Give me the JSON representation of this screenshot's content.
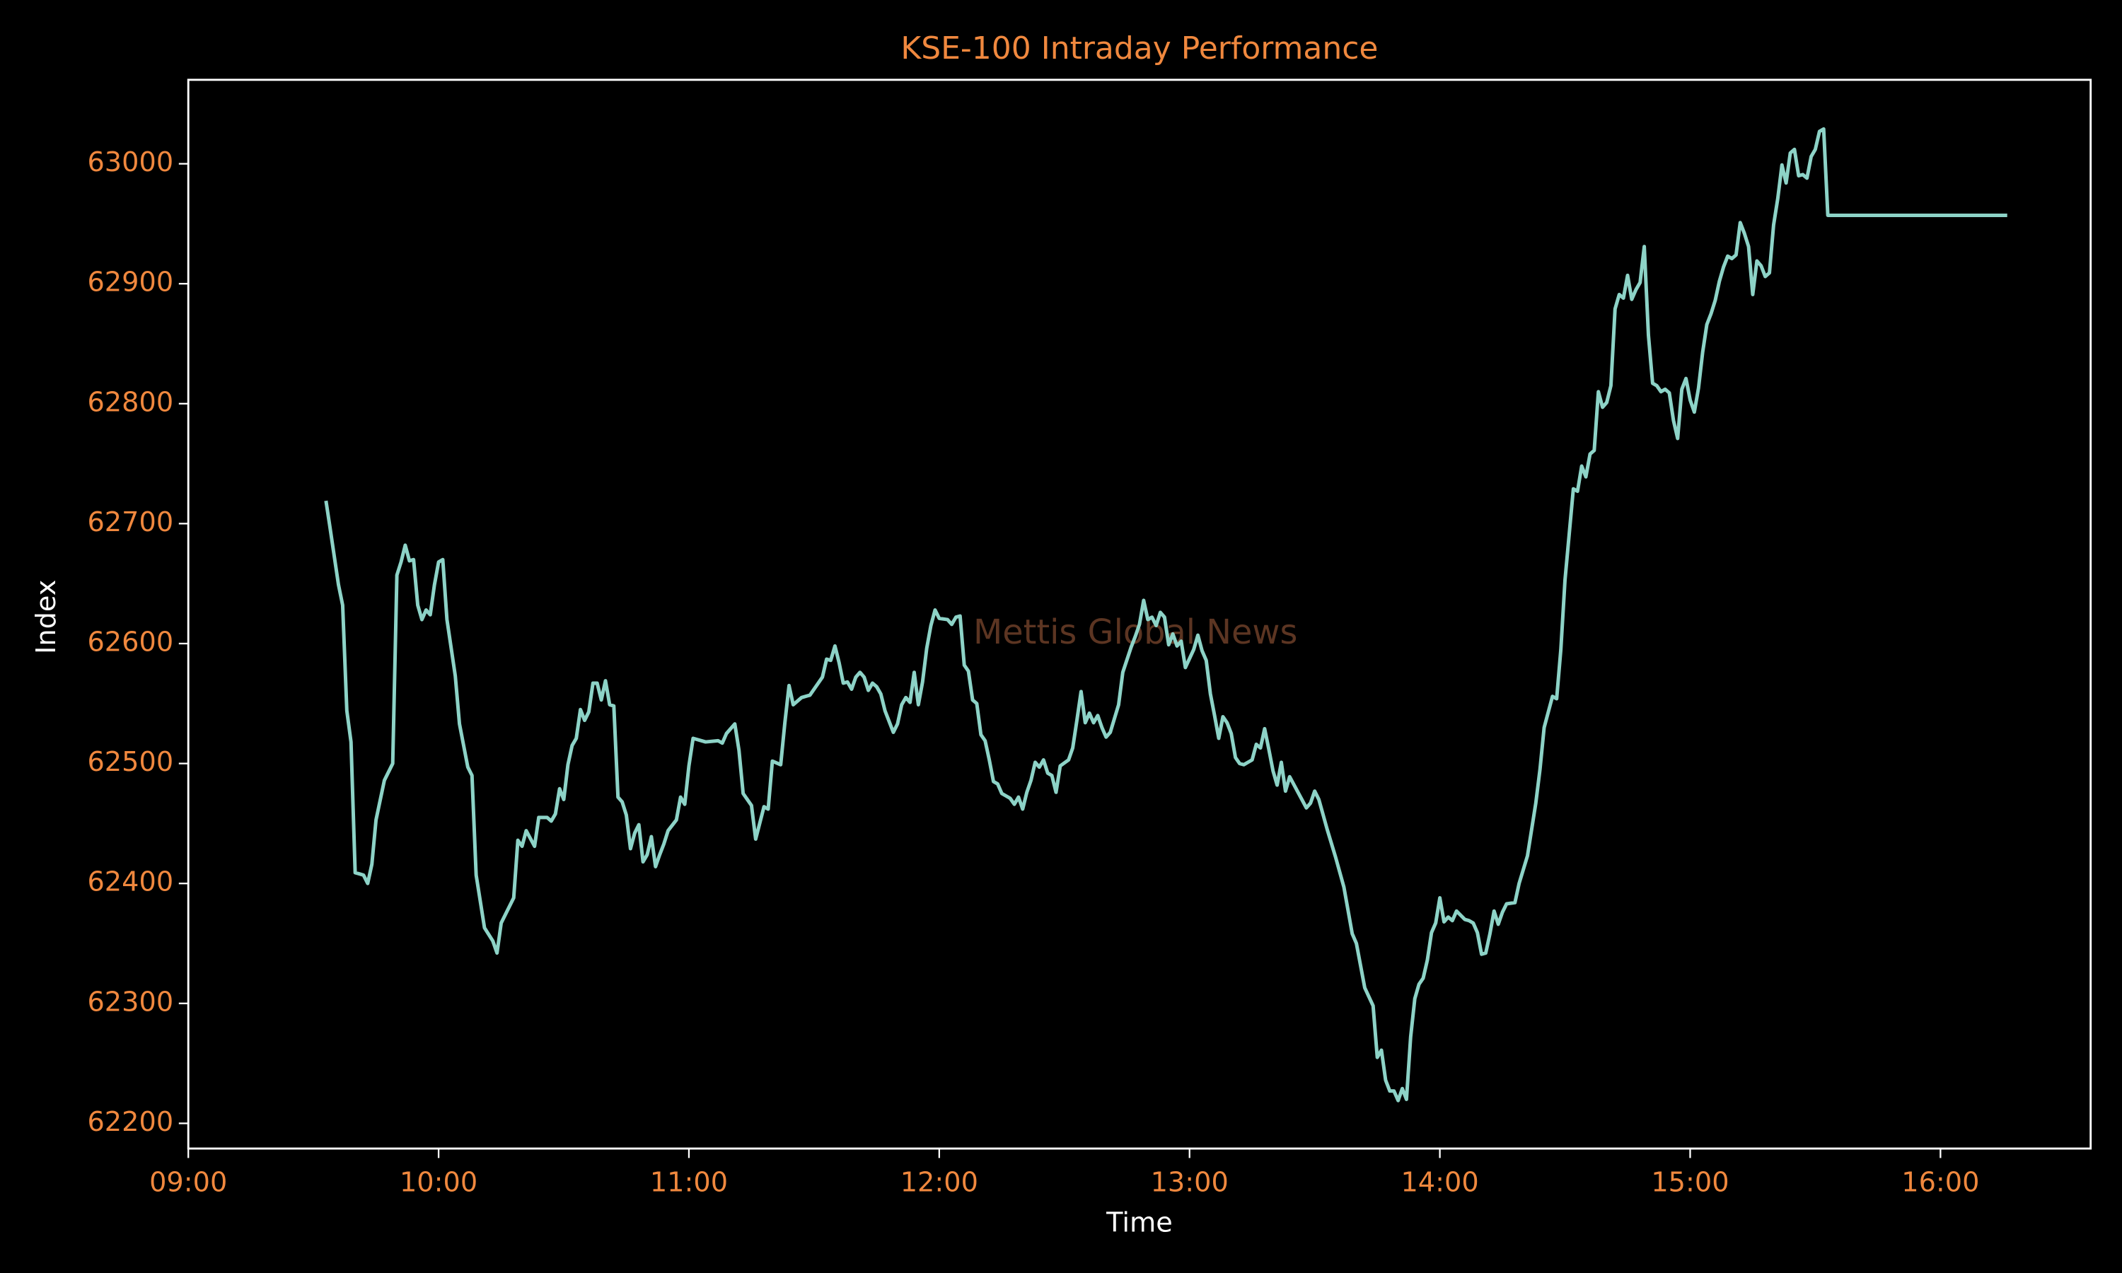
{
  "chart_data": {
    "type": "line",
    "title": "KSE-100 Intraday Performance",
    "xlabel": "Time",
    "ylabel": "Index",
    "watermark": "Mettis Global News",
    "color": "#8dd3c7",
    "tick_color": "#f0883e",
    "background": "#000000",
    "xlim": [
      "09:00",
      "16:36"
    ],
    "ylim": [
      62179,
      63070
    ],
    "xticks": [
      "09:00",
      "10:00",
      "11:00",
      "12:00",
      "13:00",
      "14:00",
      "15:00",
      "16:00"
    ],
    "yticks": [
      62200,
      62300,
      62400,
      62500,
      62600,
      62700,
      62800,
      62900,
      63000
    ],
    "x": [
      "09:33",
      "09:34",
      "09:36",
      "09:37",
      "09:38",
      "09:39",
      "09:40",
      "09:42",
      "09:43",
      "09:44",
      "09:45",
      "09:47",
      "09:49",
      "09:50",
      "09:51",
      "09:52",
      "09:53",
      "09:54",
      "09:55",
      "09:56",
      "09:57",
      "09:58",
      "09:59",
      "10:00",
      "10:01",
      "10:02",
      "10:04",
      "10:05",
      "10:07",
      "10:08",
      "10:09",
      "10:11",
      "10:13",
      "10:14",
      "10:15",
      "10:16",
      "10:18",
      "10:19",
      "10:20",
      "10:21",
      "10:23",
      "10:24",
      "10:26",
      "10:27",
      "10:28",
      "10:29",
      "10:30",
      "10:31",
      "10:32",
      "10:33",
      "10:34",
      "10:35",
      "10:36",
      "10:37",
      "10:38",
      "10:39",
      "10:40",
      "10:41",
      "10:42",
      "10:43",
      "10:44",
      "10:45",
      "10:46",
      "10:47",
      "10:48",
      "10:49",
      "10:50",
      "10:51",
      "10:52",
      "10:53",
      "10:54",
      "10:55",
      "10:57",
      "10:58",
      "10:59",
      "11:00",
      "11:01",
      "11:04",
      "11:07",
      "11:08",
      "11:09",
      "11:11",
      "11:12",
      "11:13",
      "11:15",
      "11:16",
      "11:18",
      "11:19",
      "11:20",
      "11:22",
      "11:23",
      "11:24",
      "11:25",
      "11:27",
      "11:29",
      "11:30",
      "11:32",
      "11:33",
      "11:34",
      "11:35",
      "11:36",
      "11:37",
      "11:38",
      "11:39",
      "11:40",
      "11:41",
      "11:42",
      "11:43",
      "11:44",
      "11:45",
      "11:46",
      "11:47",
      "11:49",
      "11:50",
      "11:51",
      "11:52",
      "11:53",
      "11:54",
      "11:55",
      "11:56",
      "11:57",
      "11:58",
      "11:59",
      "12:00",
      "12:02",
      "12:03",
      "12:04",
      "12:05",
      "12:06",
      "12:07",
      "12:08",
      "12:09",
      "12:10",
      "12:11",
      "12:12",
      "12:13",
      "12:14",
      "12:15",
      "12:17",
      "12:18",
      "12:19",
      "12:20",
      "12:21",
      "12:22",
      "12:23",
      "12:24",
      "12:25",
      "12:26",
      "12:27",
      "12:28",
      "12:29",
      "12:31",
      "12:32",
      "12:33",
      "12:34",
      "12:35",
      "12:36",
      "12:37",
      "12:38",
      "12:39",
      "12:40",
      "12:41",
      "12:43",
      "12:44",
      "12:46",
      "12:47",
      "12:48",
      "12:49",
      "12:50",
      "12:51",
      "12:52",
      "12:53",
      "12:54",
      "12:55",
      "12:56",
      "12:57",
      "12:58",
      "12:59",
      "13:01",
      "13:02",
      "13:03",
      "13:04",
      "13:05",
      "13:06",
      "13:07",
      "13:08",
      "13:09",
      "13:10",
      "13:11",
      "13:12",
      "13:13",
      "13:14",
      "13:15",
      "13:16",
      "13:17",
      "13:18",
      "13:19",
      "13:20",
      "13:21",
      "13:22",
      "13:23",
      "13:24",
      "13:26",
      "13:28",
      "13:29",
      "13:30",
      "13:31",
      "13:33",
      "13:35",
      "13:37",
      "13:39",
      "13:40",
      "13:42",
      "13:44",
      "13:45",
      "13:46",
      "13:47",
      "13:48",
      "13:49",
      "13:50",
      "13:51",
      "13:52",
      "13:53",
      "13:54",
      "13:55",
      "13:56",
      "13:57",
      "13:58",
      "13:59",
      "14:00",
      "14:01",
      "14:02",
      "14:03",
      "14:04",
      "14:06",
      "14:07",
      "14:08",
      "14:09",
      "14:10",
      "14:11",
      "14:12",
      "14:13",
      "14:14",
      "14:15",
      "14:16",
      "14:18",
      "14:19",
      "14:21",
      "14:23",
      "14:24",
      "14:25",
      "14:27",
      "14:28",
      "14:29",
      "14:30",
      "14:32",
      "14:33",
      "14:34",
      "14:35",
      "14:36",
      "14:37",
      "14:38",
      "14:39",
      "14:40",
      "14:41",
      "14:42",
      "14:43",
      "14:44",
      "14:45",
      "14:46",
      "14:47",
      "14:48",
      "14:49",
      "14:50",
      "14:51",
      "14:52",
      "14:53",
      "14:54",
      "14:55",
      "14:56",
      "14:57",
      "14:58",
      "14:59",
      "15:00",
      "15:01",
      "15:02",
      "15:03",
      "15:04",
      "15:05",
      "15:06",
      "15:07",
      "15:08",
      "15:09",
      "15:10",
      "15:11",
      "15:12",
      "15:13",
      "15:14",
      "15:15",
      "15:16",
      "15:17",
      "15:18",
      "15:19",
      "15:20",
      "15:21",
      "15:22",
      "15:23",
      "15:24",
      "15:25",
      "15:26",
      "15:27",
      "15:28",
      "15:29",
      "15:30",
      "15:31",
      "15:32",
      "15:33",
      "16:16"
    ],
    "values": [
      62719,
      62696,
      62649,
      62632,
      62544,
      62518,
      62409,
      62407,
      62400,
      62416,
      62453,
      62486,
      62500,
      62657,
      62668,
      62682,
      62669,
      62670,
      62632,
      62620,
      62628,
      62624,
      62649,
      62668,
      62670,
      62620,
      62573,
      62533,
      62497,
      62490,
      62407,
      62363,
      62352,
      62342,
      62367,
      62374,
      62388,
      62436,
      62431,
      62444,
      62431,
      62455,
      62455,
      62452,
      62458,
      62479,
      62470,
      62499,
      62515,
      62521,
      62545,
      62536,
      62543,
      62567,
      62567,
      62553,
      62569,
      62549,
      62548,
      62472,
      62468,
      62457,
      62429,
      62442,
      62449,
      62418,
      62424,
      62439,
      62414,
      62424,
      62433,
      62444,
      62453,
      62472,
      62466,
      62498,
      62521,
      62518,
      62519,
      62517,
      62525,
      62533,
      62511,
      62475,
      62465,
      62437,
      62464,
      62462,
      62502,
      62499,
      62534,
      62565,
      62549,
      62555,
      62557,
      62562,
      62572,
      62587,
      62586,
      62598,
      62584,
      62567,
      62568,
      62562,
      62572,
      62576,
      62572,
      62561,
      62567,
      62564,
      62558,
      62544,
      62526,
      62533,
      62549,
      62555,
      62551,
      62576,
      62549,
      62568,
      62596,
      62615,
      62628,
      62621,
      62620,
      62616,
      62622,
      62623,
      62582,
      62577,
      62553,
      62550,
      62524,
      62519,
      62503,
      62485,
      62483,
      62475,
      62471,
      62466,
      62472,
      62462,
      62476,
      62486,
      62501,
      62497,
      62503,
      62492,
      62490,
      62476,
      62498,
      62503,
      62513,
      62536,
      62560,
      62534,
      62542,
      62534,
      62540,
      62530,
      62522,
      62526,
      62549,
      62576,
      62597,
      62606,
      62616,
      62636,
      62620,
      62622,
      62615,
      62626,
      62622,
      62599,
      62608,
      62598,
      62602,
      62580,
      62595,
      62607,
      62594,
      62586,
      62558,
      62540,
      62521,
      62539,
      62534,
      62525,
      62505,
      62500,
      62499,
      62501,
      62503,
      62516,
      62513,
      62529,
      62512,
      62494,
      62482,
      62501,
      62477,
      62489,
      62476,
      62463,
      62467,
      62477,
      62470,
      62445,
      62422,
      62397,
      62358,
      62350,
      62313,
      62298,
      62255,
      62261,
      62236,
      62227,
      62227,
      62219,
      62229,
      62220,
      62272,
      62304,
      62316,
      62321,
      62336,
      62359,
      62367,
      62388,
      62368,
      62372,
      62369,
      62377,
      62370,
      62369,
      62367,
      62359,
      62341,
      62342,
      62358,
      62377,
      62366,
      62376,
      62383,
      62384,
      62400,
      62423,
      62467,
      62495,
      62530,
      62556,
      62554,
      62595,
      62653,
      62729,
      62727,
      62748,
      62739,
      62758,
      62761,
      62810,
      62797,
      62801,
      62815,
      62879,
      62891,
      62888,
      62907,
      62887,
      62895,
      62901,
      62931,
      62857,
      62817,
      62815,
      62810,
      62812,
      62809,
      62786,
      62771,
      62812,
      62821,
      62803,
      62793,
      62813,
      62843,
      62866,
      62875,
      62886,
      62902,
      62914,
      62923,
      62921,
      62924,
      62951,
      62942,
      62931,
      62891,
      62919,
      62915,
      62906,
      62909,
      62949,
      62971,
      62999,
      62984,
      63009,
      63012,
      62990,
      62991,
      62988,
      63006,
      63012,
      63027,
      63029,
      62957,
      62957
    ]
  }
}
